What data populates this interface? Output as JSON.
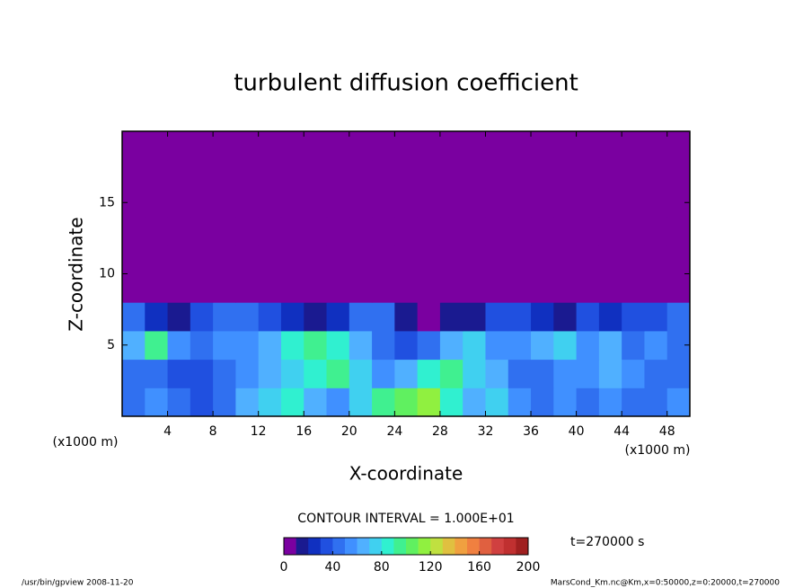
{
  "chart_data": {
    "type": "heatmap",
    "title": "turbulent diffusion coefficient",
    "x_label": "X-coordinate",
    "y_label": "Z-coordinate",
    "x_unit_label": "(x1000 m)",
    "y_unit_label": "(x1000 m)",
    "xlim": [
      0,
      50
    ],
    "ylim": [
      0,
      20
    ],
    "xticks": [
      4,
      8,
      12,
      16,
      20,
      24,
      28,
      32,
      36,
      40,
      44,
      48
    ],
    "yticks": [
      5,
      10,
      15
    ],
    "values": [
      [
        40,
        50,
        40,
        30,
        40,
        60,
        70,
        80,
        60,
        50,
        70,
        90,
        100,
        110,
        80,
        60,
        70,
        50,
        40,
        50,
        40,
        50,
        40,
        40,
        50
      ],
      [
        40,
        40,
        30,
        30,
        40,
        50,
        60,
        70,
        80,
        90,
        70,
        50,
        60,
        80,
        90,
        70,
        60,
        40,
        40,
        50,
        50,
        60,
        50,
        40,
        40
      ],
      [
        60,
        90,
        50,
        40,
        50,
        50,
        60,
        80,
        90,
        80,
        60,
        40,
        30,
        40,
        60,
        70,
        50,
        50,
        60,
        70,
        50,
        60,
        40,
        50,
        40
      ],
      [
        40,
        20,
        10,
        30,
        40,
        40,
        30,
        20,
        10,
        20,
        40,
        40,
        10,
        0,
        10,
        10,
        30,
        30,
        20,
        10,
        30,
        20,
        30,
        30,
        40
      ],
      [
        0,
        0,
        0,
        0,
        0,
        0,
        0,
        0,
        0,
        0,
        0,
        0,
        0,
        0,
        0,
        0,
        0,
        0,
        0,
        0,
        0,
        0,
        0,
        0,
        0
      ],
      [
        0,
        0,
        0,
        0,
        0,
        0,
        0,
        0,
        0,
        0,
        0,
        0,
        0,
        0,
        0,
        0,
        0,
        0,
        0,
        0,
        0,
        0,
        0,
        0,
        0
      ],
      [
        0,
        0,
        0,
        0,
        0,
        0,
        0,
        0,
        0,
        0,
        0,
        0,
        0,
        0,
        0,
        0,
        0,
        0,
        0,
        0,
        0,
        0,
        0,
        0,
        0
      ],
      [
        0,
        0,
        0,
        0,
        0,
        0,
        0,
        0,
        0,
        0,
        0,
        0,
        0,
        0,
        0,
        0,
        0,
        0,
        0,
        0,
        0,
        0,
        0,
        0,
        0
      ],
      [
        0,
        0,
        0,
        0,
        0,
        0,
        0,
        0,
        0,
        0,
        0,
        0,
        0,
        0,
        0,
        0,
        0,
        0,
        0,
        0,
        0,
        0,
        0,
        0,
        0
      ],
      [
        0,
        0,
        0,
        0,
        0,
        0,
        0,
        0,
        0,
        0,
        0,
        0,
        0,
        0,
        0,
        0,
        0,
        0,
        0,
        0,
        0,
        0,
        0,
        0,
        0
      ]
    ],
    "colorbar": {
      "lim": [
        0,
        200
      ],
      "ticks": [
        0,
        40,
        80,
        120,
        160,
        200
      ],
      "colors": [
        "#7a00a0",
        "#1a1a90",
        "#1030c0",
        "#2050e0",
        "#3070f0",
        "#4090ff",
        "#50b0ff",
        "#40d0f0",
        "#30f0d0",
        "#40f090",
        "#60f060",
        "#90f040",
        "#c0e040",
        "#e0c040",
        "#f0a040",
        "#f08040",
        "#e06040",
        "#d04040",
        "#c03030",
        "#a02020"
      ]
    },
    "contour_interval": "CONTOUR INTERVAL = 1.000E+01",
    "time_label": "t=270000 s",
    "footer_left": "/usr/bin/gpview  2008-11-20",
    "footer_right": "MarsCond_Km.nc@Km,x=0:50000,z=0:20000,t=270000"
  }
}
